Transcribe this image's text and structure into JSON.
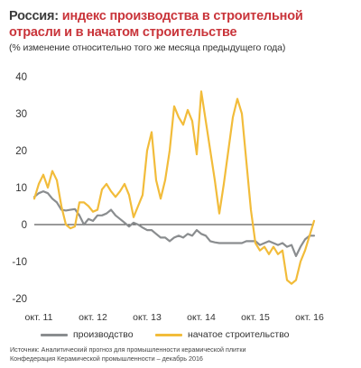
{
  "header": {
    "title_lead": "Россия: ",
    "title_accent_1": "индекс производства в строительной",
    "title_accent_2": "отрасли и в начатом строительстве",
    "subtitle": "(% изменение относительно того же месяца предыдущего года)"
  },
  "colors": {
    "production": "#8a8d8f",
    "construction_started": "#f2bc3a",
    "accent": "#c9343a",
    "zero_line": "#333333"
  },
  "chart_data": {
    "type": "line",
    "ylim": [
      -20,
      40
    ],
    "yticks": [
      40,
      30,
      20,
      10,
      0,
      -10,
      -20
    ],
    "ytick_labels": [
      "40",
      "30",
      "20",
      "10",
      "0",
      "-10",
      "-20"
    ],
    "xlim": [
      0,
      62
    ],
    "xtick_positions": [
      1,
      13,
      25,
      37,
      49,
      61
    ],
    "xtick_labels": [
      "окт. 11",
      "окт. 12",
      "окт. 13",
      "окт. 14",
      "окт. 15",
      "окт. 16"
    ],
    "x": [
      0,
      1,
      2,
      3,
      4,
      5,
      6,
      7,
      8,
      9,
      10,
      11,
      12,
      13,
      14,
      15,
      16,
      17,
      18,
      19,
      20,
      21,
      22,
      23,
      24,
      25,
      26,
      27,
      28,
      29,
      30,
      31,
      32,
      33,
      34,
      35,
      36,
      37,
      38,
      39,
      40,
      41,
      42,
      43,
      44,
      45,
      46,
      47,
      48,
      49,
      50,
      51,
      52,
      53,
      54,
      55,
      56,
      57,
      58,
      59,
      60,
      61,
      62
    ],
    "series": [
      {
        "name": "производство",
        "values": [
          7.5,
          8.5,
          9,
          8.5,
          7,
          6,
          4,
          3.8,
          4,
          4.2,
          2.5,
          0,
          1.5,
          1,
          2.5,
          2.5,
          3,
          4,
          2.5,
          1.5,
          0.5,
          -0.5,
          0.5,
          0,
          -0.8,
          -1.5,
          -1.5,
          -2.5,
          -3.5,
          -3.5,
          -4.5,
          -3.5,
          -3,
          -3.5,
          -2.5,
          -3,
          -1.5,
          -2.5,
          -3,
          -4.5,
          -4.8,
          -5,
          -5,
          -5,
          -5,
          -5,
          -5,
          -4.5,
          -4.5,
          -4.5,
          -5.5,
          -5,
          -4.5,
          -5,
          -5.5,
          -5,
          -6,
          -5.5,
          -8.5,
          -6,
          -4,
          -3,
          -3
        ]
      },
      {
        "name": "начатое строительство",
        "values": [
          7,
          11,
          13.5,
          10,
          14.5,
          12,
          5,
          0,
          -1,
          -0.5,
          6,
          6,
          5,
          3.5,
          4,
          9.5,
          11,
          9,
          7.5,
          9,
          11,
          8,
          2,
          5,
          8,
          20,
          25,
          12,
          7,
          12,
          20,
          32,
          29,
          27,
          31,
          28,
          19,
          36,
          28,
          20,
          12,
          3,
          11,
          20,
          29,
          34,
          30,
          17,
          4,
          -5,
          -7,
          -6,
          -8,
          -6,
          -8,
          -7,
          -15,
          -16,
          -15,
          -10,
          -7,
          -3,
          1
        ]
      }
    ]
  },
  "legend": {
    "items": [
      {
        "label": "производство"
      },
      {
        "label": "начатое строительство"
      }
    ]
  },
  "source": {
    "line1": "Источник: Аналитический прогноз для промышленности керамической плитки",
    "line2": "Конфедерация Керамической промышленности – декабрь 2016"
  }
}
